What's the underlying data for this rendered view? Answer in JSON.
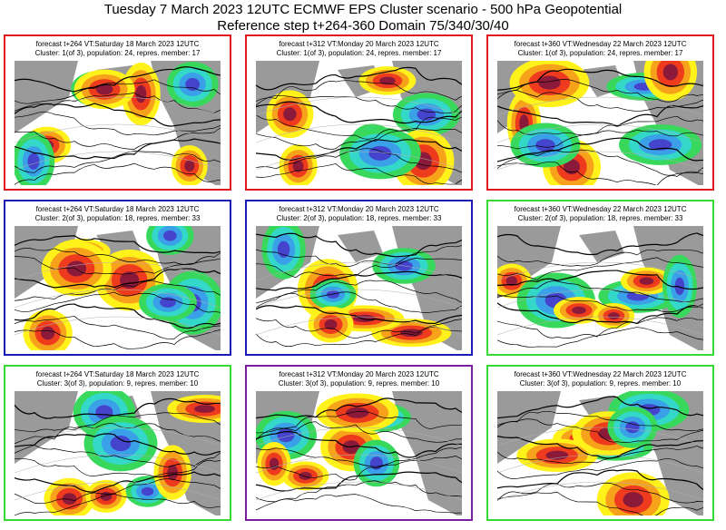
{
  "header": {
    "line1": "Tuesday 7 March 2023 12UTC ECMWF EPS Cluster scenario - 500 hPa Geopotential",
    "line2": "Reference step t+264-360 Domain 75/340/30/40"
  },
  "colors": {
    "red": "#e0191e",
    "blue": "#1a1ab4",
    "green": "#36d936",
    "purple": "#7b1fa2",
    "anom_pos_strong": "#8b1a3a",
    "anom_pos": "#ee3b1e",
    "anom_pos_weak": "#f7a21b",
    "anom_pos_faint": "#fff21a",
    "anom_neg_faint": "#38d85c",
    "anom_neg": "#34d8c8",
    "anom_neg_strong": "#3aa0e8",
    "anom_neg_deep": "#4444cc",
    "land": "#9a9a9a"
  },
  "panels": [
    {
      "line1": "forecast t+264 VT:Saturday 18 March 2023 12UTC",
      "line2": "Cluster: 1(of 3), population: 24, repres. member: 17",
      "border": "red"
    },
    {
      "line1": "forecast t+312 VT:Monday 20 March 2023 12UTC",
      "line2": "Cluster: 1(of 3), population: 24, repres. member: 17",
      "border": "red"
    },
    {
      "line1": "forecast t+360 VT:Wednesday 22 March 2023 12UTC",
      "line2": "Cluster: 1(of 3), population: 24, repres. member: 17",
      "border": "red"
    },
    {
      "line1": "forecast t+264 VT:Saturday 18 March 2023 12UTC",
      "line2": "Cluster: 2(of 3), population: 18, repres. member: 33",
      "border": "blue"
    },
    {
      "line1": "forecast t+312 VT:Monday 20 March 2023 12UTC",
      "line2": "Cluster: 2(of 3), population: 18, repres. member: 33",
      "border": "blue"
    },
    {
      "line1": "forecast t+360 VT:Wednesday 22 March 2023 12UTC",
      "line2": "Cluster: 2(of 3), population: 18, repres. member: 33",
      "border": "green"
    },
    {
      "line1": "forecast t+264 VT:Saturday 18 March 2023 12UTC",
      "line2": "Cluster: 3(of 3), population: 9, repres. member: 10",
      "border": "green"
    },
    {
      "line1": "forecast t+312 VT:Monday 20 March 2023 12UTC",
      "line2": "Cluster: 3(of 3), population: 9, repres. member: 10",
      "border": "purple"
    },
    {
      "line1": "forecast t+360 VT:Wednesday 22 March 2023 12UTC",
      "line2": "Cluster: 3(of 3), population: 9, repres. member: 10",
      "border": "green"
    }
  ]
}
